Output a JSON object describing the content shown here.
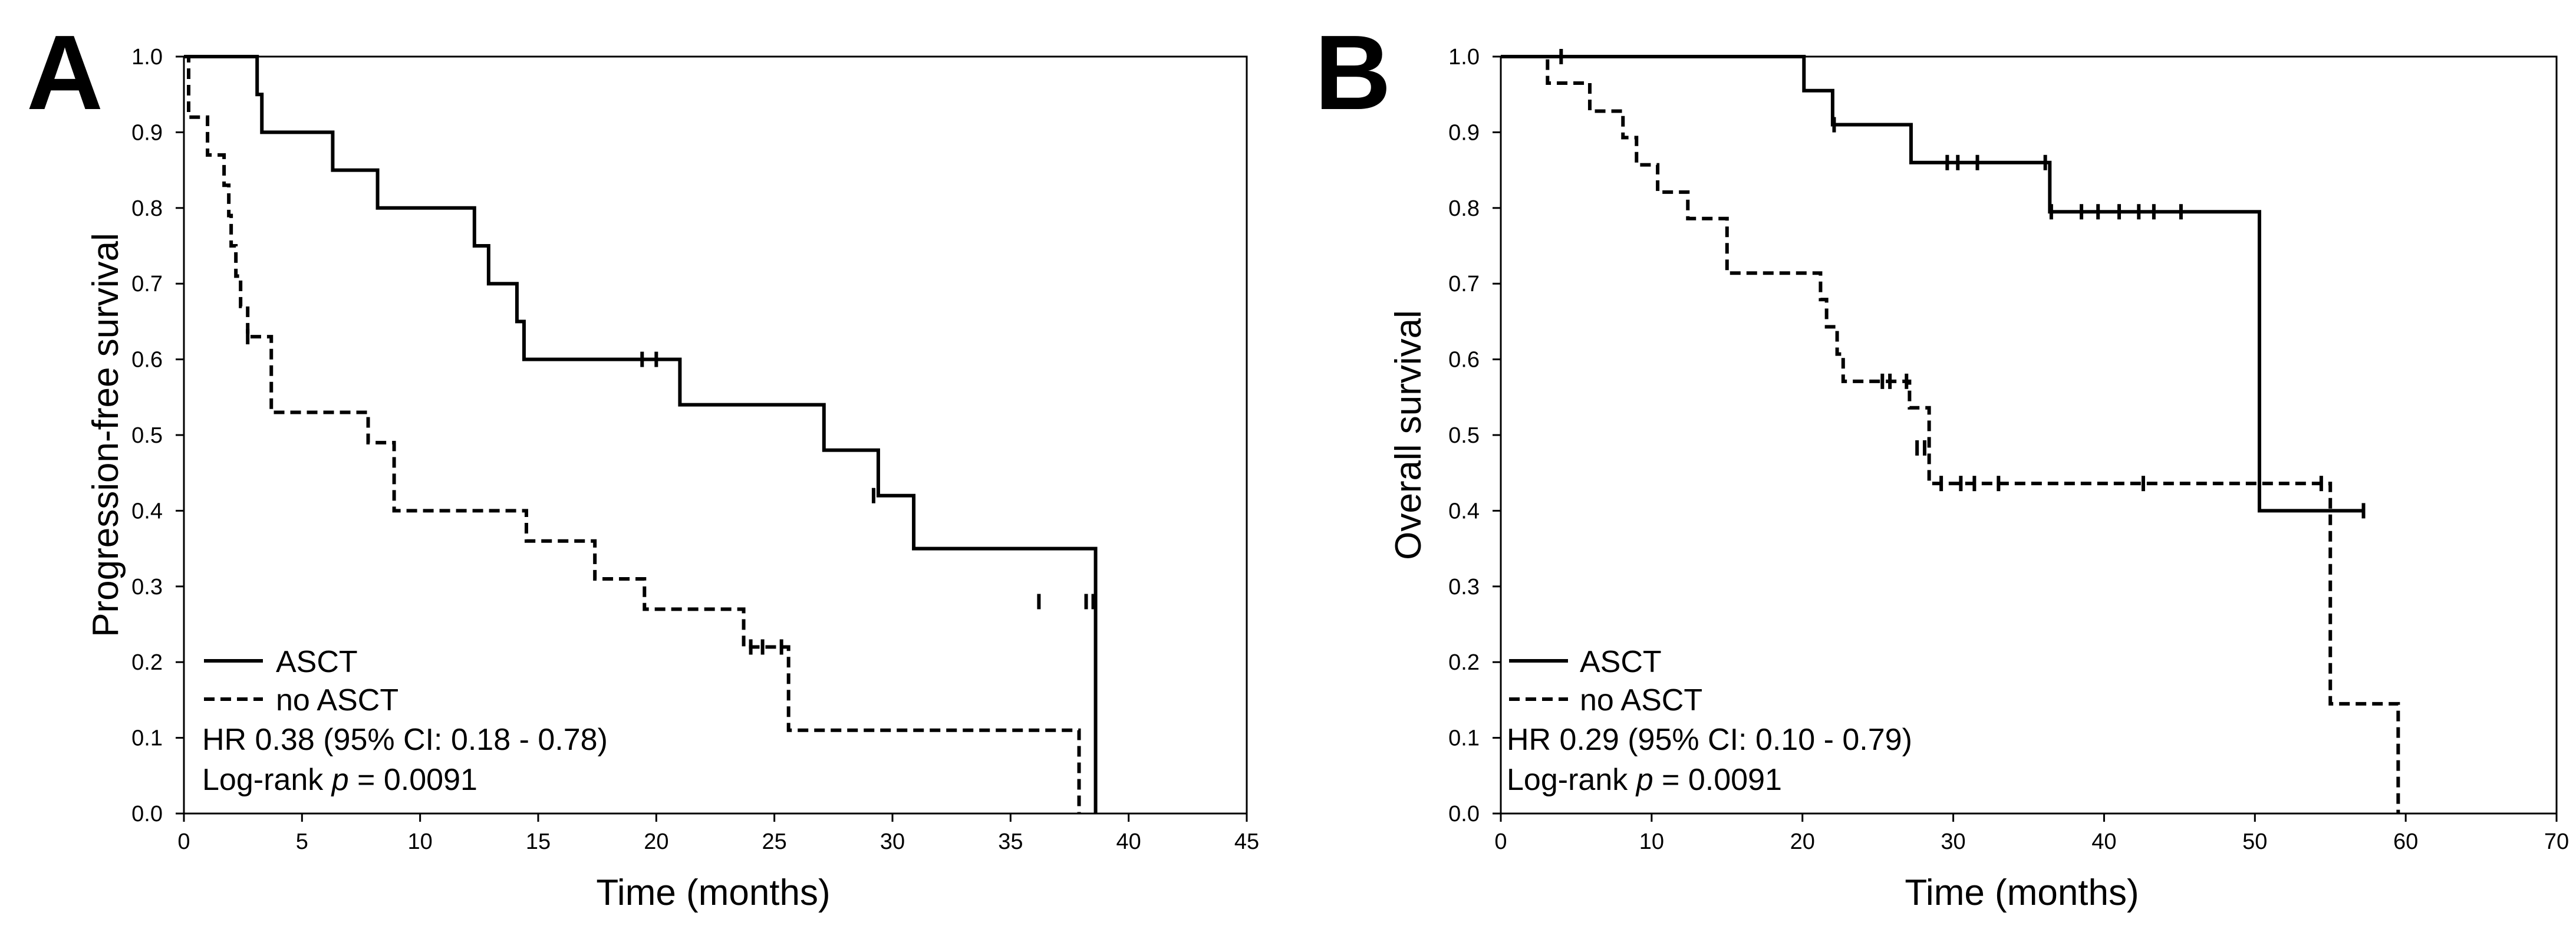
{
  "chart_data": [
    {
      "type": "line",
      "panel": "A",
      "xlabel": "Time (months)",
      "ylabel": "Progression-free survival",
      "xlim": [
        0,
        45
      ],
      "ylim": [
        0,
        1
      ],
      "x_ticks": [
        0,
        5,
        10,
        15,
        20,
        25,
        30,
        35,
        40,
        45
      ],
      "y_ticks": [
        "0.0",
        "0.1",
        "0.2",
        "0.3",
        "0.4",
        "0.5",
        "0.6",
        "0.7",
        "0.8",
        "0.9",
        "1.0"
      ],
      "legend_position": "bottom-left",
      "series": [
        {
          "name": "ASCT",
          "style": "solid",
          "x": [
            0,
            3.1,
            3.3,
            6.3,
            8.2,
            12.3,
            12.9,
            14.1,
            14.4,
            21.0,
            27.1,
            29.4,
            30.9,
            38.6
          ],
          "y": [
            1.0,
            0.95,
            0.9,
            0.85,
            0.8,
            0.75,
            0.7,
            0.65,
            0.6,
            0.54,
            0.48,
            0.42,
            0.35,
            0.28
          ],
          "end_x": 38.6,
          "end_y": 0.0,
          "censor_x": [
            19.4,
            20.0,
            29.2,
            36.2,
            38.2,
            38.5
          ],
          "censor_y": [
            0.6,
            0.6,
            0.42,
            0.28,
            0.28,
            0.28
          ]
        },
        {
          "name": "no ASCT",
          "style": "dashed",
          "x": [
            0,
            0.2,
            1.0,
            1.7,
            1.9,
            2.0,
            2.2,
            2.4,
            2.7,
            3.7,
            7.8,
            8.9,
            14.5,
            17.4,
            19.5,
            23.7,
            25.6,
            37.9
          ],
          "y": [
            1.0,
            0.92,
            0.87,
            0.83,
            0.79,
            0.75,
            0.71,
            0.67,
            0.63,
            0.53,
            0.49,
            0.4,
            0.36,
            0.31,
            0.27,
            0.22,
            0.11,
            0.0
          ],
          "censor_x": [
            2.7,
            24.0,
            24.5,
            25.3
          ],
          "censor_y": [
            0.63,
            0.22,
            0.22,
            0.22
          ]
        }
      ],
      "annotations": {
        "hr": "HR 0.38 (95% CI: 0.18 - 0.78)",
        "logrank_prefix": "Log-rank ",
        "p_symbol": "p",
        "logrank_value": " = 0.0091"
      }
    },
    {
      "type": "line",
      "panel": "B",
      "xlabel": "Time (months)",
      "ylabel": "Overall survival",
      "xlim": [
        0,
        70
      ],
      "ylim": [
        0,
        1
      ],
      "x_ticks": [
        0,
        10,
        20,
        30,
        40,
        50,
        60,
        70
      ],
      "y_ticks": [
        "0.0",
        "0.1",
        "0.2",
        "0.3",
        "0.4",
        "0.5",
        "0.6",
        "0.7",
        "0.8",
        "0.9",
        "1.0"
      ],
      "legend_position": "bottom-left",
      "series": [
        {
          "name": "ASCT",
          "style": "solid",
          "x": [
            0,
            20.1,
            22.0,
            27.2,
            36.4,
            50.3
          ],
          "y": [
            1.0,
            0.955,
            0.91,
            0.86,
            0.795,
            0.4
          ],
          "end_x": 57.2,
          "end_y": 0.4,
          "censor_x": [
            4.0,
            22.1,
            29.6,
            30.3,
            31.6,
            36.1,
            36.5,
            38.5,
            39.6,
            41.0,
            42.3,
            43.3,
            45.1,
            57.2
          ],
          "censor_y": [
            1.0,
            0.91,
            0.86,
            0.86,
            0.86,
            0.86,
            0.795,
            0.795,
            0.795,
            0.795,
            0.795,
            0.795,
            0.795,
            0.4
          ]
        },
        {
          "name": "no ASCT",
          "style": "dashed",
          "x": [
            0,
            3.1,
            5.9,
            8.1,
            9.0,
            10.4,
            12.4,
            15.0,
            21.2,
            21.6,
            22.3,
            22.7,
            27.1,
            28.4,
            55.0,
            59.5
          ],
          "y": [
            1.0,
            0.965,
            0.928,
            0.893,
            0.857,
            0.821,
            0.786,
            0.714,
            0.679,
            0.643,
            0.607,
            0.571,
            0.536,
            0.436,
            0.145,
            0.0
          ],
          "censor_x": [
            25.3,
            25.8,
            26.9,
            27.6,
            28.1,
            29.2,
            30.5,
            31.4,
            33.0,
            42.6,
            54.4
          ],
          "censor_y": [
            0.571,
            0.571,
            0.571,
            0.483,
            0.483,
            0.436,
            0.436,
            0.436,
            0.436,
            0.436,
            0.436
          ]
        }
      ],
      "annotations": {
        "hr": "HR 0.29 (95% CI: 0.10 - 0.79)",
        "logrank_prefix": "Log-rank ",
        "p_symbol": "p",
        "logrank_value": " =  0.0091"
      }
    }
  ]
}
